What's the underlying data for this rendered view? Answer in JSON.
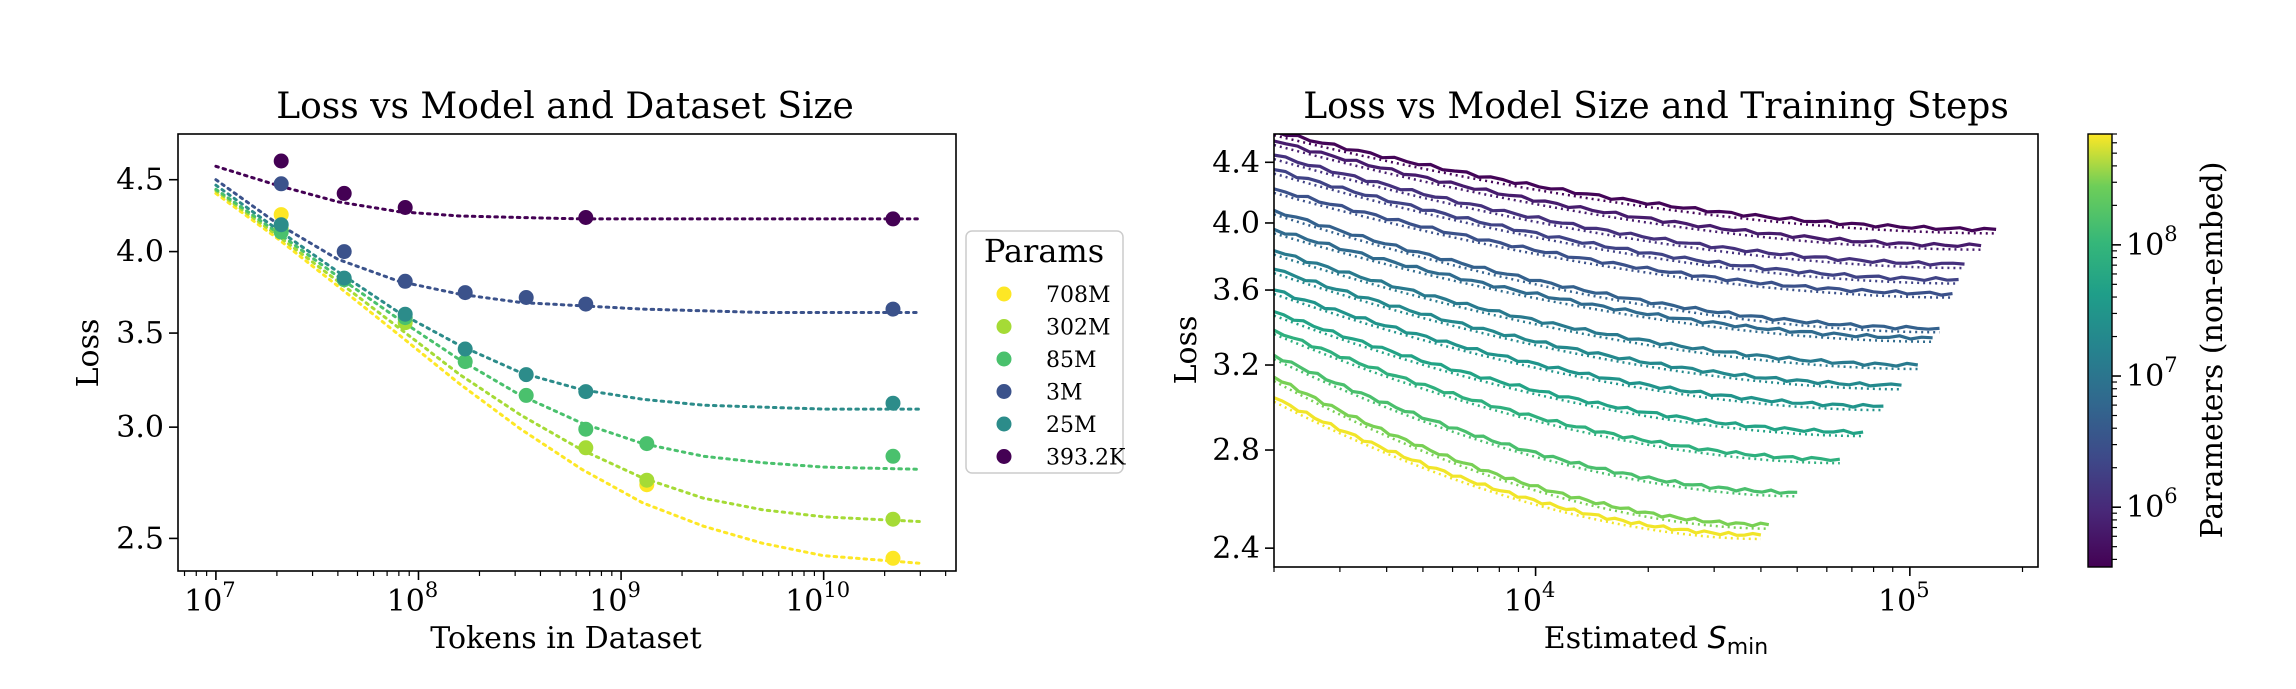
{
  "chart_data": [
    {
      "type": "scatter",
      "title": "Loss vs Model and Dataset Size",
      "xlabel": "Tokens in Dataset",
      "ylabel": "Loss",
      "xscale": "log",
      "yscale": "log",
      "xlim": [
        6500000.0,
        45000000000.0
      ],
      "ylim": [
        2.37,
        4.85
      ],
      "xticks": [
        {
          "value": 10000000.0,
          "label": "10",
          "exp": "7"
        },
        {
          "value": 100000000.0,
          "label": "10",
          "exp": "8"
        },
        {
          "value": 1000000000.0,
          "label": "10",
          "exp": "9"
        },
        {
          "value": 10000000000.0,
          "label": "10",
          "exp": "10"
        }
      ],
      "yticks": [
        {
          "value": 2.5,
          "label": "2.5"
        },
        {
          "value": 3.0,
          "label": "3.0"
        },
        {
          "value": 3.5,
          "label": "3.5"
        },
        {
          "value": 4.0,
          "label": "4.0"
        },
        {
          "value": 4.5,
          "label": "4.5"
        }
      ],
      "legend": {
        "title": "Params",
        "placement": "right, outside"
      },
      "series": [
        {
          "name": "708M",
          "color": "#fde725",
          "points": [
            [
              21000000.0,
              4.25
            ],
            [
              1340000000.0,
              2.73
            ],
            [
              22000000000.0,
              2.42
            ]
          ],
          "fit": {
            "x": [
              10000000.0,
              20000000.0,
              40000000.0,
              80000000.0,
              160000000.0,
              320000000.0,
              640000000.0,
              1280000000.0,
              2560000000.0,
              5000000000.0,
              10000000000.0,
              30000000000.0
            ],
            "y": [
              4.4,
              4.09,
              3.78,
              3.49,
              3.22,
              2.99,
              2.8,
              2.65,
              2.55,
              2.48,
              2.43,
              2.4
            ]
          }
        },
        {
          "name": "302M",
          "color": "#a5db36",
          "points": [
            [
              21000000.0,
              4.15
            ],
            [
              86000000.0,
              3.56
            ],
            [
              670000000.0,
              2.9
            ],
            [
              1340000000.0,
              2.75
            ],
            [
              22000000000.0,
              2.58
            ]
          ],
          "fit": {
            "x": [
              10000000.0,
              20000000.0,
              40000000.0,
              80000000.0,
              160000000.0,
              320000000.0,
              640000000.0,
              1280000000.0,
              2560000000.0,
              5000000000.0,
              10000000000.0,
              30000000000.0
            ],
            "y": [
              4.42,
              4.11,
              3.81,
              3.53,
              3.27,
              3.06,
              2.89,
              2.76,
              2.67,
              2.62,
              2.59,
              2.57
            ]
          }
        },
        {
          "name": "85M",
          "color": "#4ac16d",
          "points": [
            [
              21000000.0,
              4.13
            ],
            [
              43000000.0,
              3.82
            ],
            [
              86000000.0,
              3.59
            ],
            [
              170000000.0,
              3.34
            ],
            [
              340000000.0,
              3.16
            ],
            [
              670000000.0,
              2.99
            ],
            [
              1340000000.0,
              2.92
            ],
            [
              22000000000.0,
              2.86
            ]
          ],
          "fit": {
            "x": [
              10000000.0,
              20000000.0,
              40000000.0,
              80000000.0,
              160000000.0,
              320000000.0,
              640000000.0,
              1280000000.0,
              2560000000.0,
              5000000000.0,
              10000000000.0,
              30000000000.0
            ],
            "y": [
              4.43,
              4.13,
              3.84,
              3.58,
              3.35,
              3.16,
              3.02,
              2.92,
              2.86,
              2.83,
              2.81,
              2.8
            ]
          }
        },
        {
          "name": "3M",
          "color": "#3b528b",
          "points": [
            [
              21000000.0,
              4.47
            ],
            [
              43000000.0,
              4.0
            ],
            [
              86000000.0,
              3.81
            ],
            [
              170000000.0,
              3.74
            ],
            [
              340000000.0,
              3.71
            ],
            [
              670000000.0,
              3.67
            ],
            [
              22000000000.0,
              3.64
            ]
          ],
          "fit": {
            "x": [
              10000000.0,
              20000000.0,
              40000000.0,
              80000000.0,
              160000000.0,
              320000000.0,
              640000000.0,
              1280000000.0,
              2560000000.0,
              5000000000.0,
              10000000000.0,
              30000000000.0
            ],
            "y": [
              4.5,
              4.19,
              3.95,
              3.81,
              3.73,
              3.68,
              3.66,
              3.64,
              3.63,
              3.62,
              3.62,
              3.62
            ]
          }
        },
        {
          "name": "25M",
          "color": "#2c8c8a",
          "points": [
            [
              21000000.0,
              4.18
            ],
            [
              43000000.0,
              3.83
            ],
            [
              86000000.0,
              3.61
            ],
            [
              170000000.0,
              3.41
            ],
            [
              340000000.0,
              3.27
            ],
            [
              670000000.0,
              3.18
            ],
            [
              22000000000.0,
              3.12
            ]
          ],
          "fit": {
            "x": [
              10000000.0,
              20000000.0,
              40000000.0,
              80000000.0,
              160000000.0,
              320000000.0,
              640000000.0,
              1280000000.0,
              2560000000.0,
              5000000000.0,
              10000000000.0,
              30000000000.0
            ],
            "y": [
              4.46,
              4.15,
              3.87,
              3.62,
              3.43,
              3.28,
              3.19,
              3.14,
              3.11,
              3.1,
              3.09,
              3.09
            ]
          }
        },
        {
          "name": "393.2K",
          "color": "#440154",
          "points": [
            [
              21000000.0,
              4.64
            ],
            [
              43000000.0,
              4.4
            ],
            [
              86000000.0,
              4.3
            ],
            [
              670000000.0,
              4.23
            ],
            [
              22000000000.0,
              4.22
            ]
          ],
          "fit": {
            "x": [
              10000000.0,
              20000000.0,
              40000000.0,
              80000000.0,
              160000000.0,
              320000000.0,
              640000000.0,
              1280000000.0,
              2560000000.0,
              5000000000.0,
              10000000000.0,
              30000000000.0
            ],
            "y": [
              4.6,
              4.46,
              4.34,
              4.27,
              4.24,
              4.23,
              4.22,
              4.22,
              4.22,
              4.22,
              4.22,
              4.22
            ]
          }
        }
      ]
    },
    {
      "type": "line",
      "title": "Loss vs Model Size and Training Steps",
      "xlabel": "Estimated",
      "xlabel_symbol": "S",
      "xlabel_subscript": "min",
      "ylabel": "Loss",
      "xscale": "log",
      "yscale": "log",
      "xlim": [
        2000,
        220000
      ],
      "ylim": [
        2.33,
        4.6
      ],
      "xticks": [
        {
          "value": 10000,
          "label": "10",
          "exp": "4"
        },
        {
          "value": 100000,
          "label": "10",
          "exp": "5"
        }
      ],
      "yticks": [
        {
          "value": 2.4,
          "label": "2.4"
        },
        {
          "value": 2.8,
          "label": "2.8"
        },
        {
          "value": 3.2,
          "label": "3.2"
        },
        {
          "value": 3.6,
          "label": "3.6"
        },
        {
          "value": 4.0,
          "label": "4.0"
        },
        {
          "value": 4.4,
          "label": "4.4"
        }
      ],
      "colorbar": {
        "label": "Parameters (non-embed)",
        "scale": "log",
        "range": [
          350000.0,
          700000000.0
        ],
        "ticks": [
          {
            "value": 1000000.0,
            "label": "10",
            "exp": "6"
          },
          {
            "value": 10000000.0,
            "label": "10",
            "exp": "7"
          },
          {
            "value": 100000000.0,
            "label": "10",
            "exp": "8"
          }
        ]
      },
      "series": [
        {
          "params": 390000.0,
          "x_end": 170000,
          "y_start": 4.62,
          "y_end": 3.96
        },
        {
          "params": 700000.0,
          "x_end": 155000,
          "y_start": 4.55,
          "y_end": 3.86
        },
        {
          "params": 1200000.0,
          "x_end": 140000,
          "y_start": 4.45,
          "y_end": 3.75
        },
        {
          "params": 2000000.0,
          "x_end": 135000,
          "y_start": 4.35,
          "y_end": 3.66
        },
        {
          "params": 3000000.0,
          "x_end": 130000,
          "y_start": 4.22,
          "y_end": 3.58
        },
        {
          "params": 5000000.0,
          "x_end": 120000,
          "y_start": 4.08,
          "y_end": 3.39
        },
        {
          "params": 7000000.0,
          "x_end": 115000,
          "y_start": 3.96,
          "y_end": 3.34
        },
        {
          "params": 12000000.0,
          "x_end": 105000,
          "y_start": 3.83,
          "y_end": 3.2
        },
        {
          "params": 20000000.0,
          "x_end": 95000,
          "y_start": 3.72,
          "y_end": 3.1
        },
        {
          "params": 30000000.0,
          "x_end": 85000,
          "y_start": 3.6,
          "y_end": 3.0
        },
        {
          "params": 50000000.0,
          "x_end": 75000,
          "y_start": 3.48,
          "y_end": 2.88
        },
        {
          "params": 80000000.0,
          "x_end": 65000,
          "y_start": 3.38,
          "y_end": 2.76
        },
        {
          "params": 150000000.0,
          "x_end": 50000,
          "y_start": 3.25,
          "y_end": 2.62
        },
        {
          "params": 300000000.0,
          "x_end": 42000,
          "y_start": 3.14,
          "y_end": 2.49
        },
        {
          "params": 650000000.0,
          "x_end": 40000,
          "y_start": 3.04,
          "y_end": 2.45
        }
      ]
    }
  ]
}
